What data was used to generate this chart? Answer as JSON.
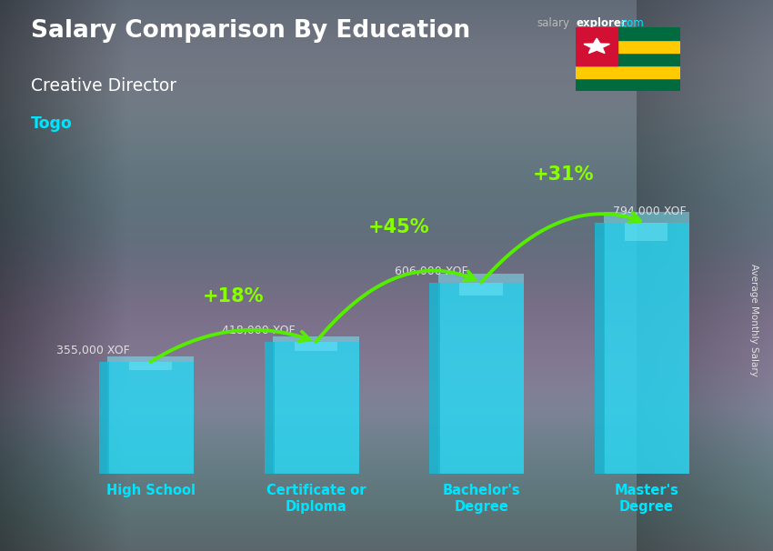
{
  "title_main": "Salary Comparison By Education",
  "subtitle": "Creative Director",
  "country": "Togo",
  "ylabel": "Average Monthly Salary",
  "categories": [
    "High School",
    "Certificate or\nDiploma",
    "Bachelor's\nDegree",
    "Master's\nDegree"
  ],
  "values": [
    355000,
    418000,
    606000,
    794000
  ],
  "value_labels": [
    "355,000 XOF",
    "418,000 XOF",
    "606,000 XOF",
    "794,000 XOF"
  ],
  "pct_labels": [
    "+18%",
    "+45%",
    "+31%"
  ],
  "bar_face_color": "#29d9f5",
  "bar_left_color": "#1ab8d4",
  "bar_right_color": "#0090a8",
  "bar_top_color": "#80eeff",
  "bar_width": 0.52,
  "bg_color": "#607080",
  "title_color": "#ffffff",
  "subtitle_color": "#ffffff",
  "country_color": "#00e5ff",
  "value_color": "#e0e0e0",
  "pct_color": "#88ff00",
  "arrow_color": "#55ee00",
  "tick_label_color": "#00e5ff",
  "ylim": [
    0,
    960000
  ],
  "flag_stripe_colors": [
    "#006b3f",
    "#ffcb00",
    "#006b3f",
    "#ffcb00",
    "#006b3f"
  ],
  "flag_canton_color": "#d21034",
  "flag_star_color": "#ffffff"
}
